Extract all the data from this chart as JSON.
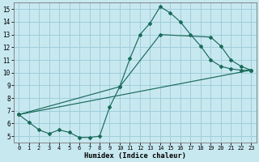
{
  "xlabel": "Humidex (Indice chaleur)",
  "background_color": "#c8e8f0",
  "grid_color": "#9ecfda",
  "line_color": "#1a6b5a",
  "xlim": [
    -0.5,
    23.5
  ],
  "ylim": [
    4.5,
    15.5
  ],
  "xticks": [
    0,
    1,
    2,
    3,
    4,
    5,
    6,
    7,
    8,
    9,
    10,
    11,
    12,
    13,
    14,
    15,
    16,
    17,
    18,
    19,
    20,
    21,
    22,
    23
  ],
  "yticks": [
    5,
    6,
    7,
    8,
    9,
    10,
    11,
    12,
    13,
    14,
    15
  ],
  "line1_x": [
    0,
    1,
    2,
    3,
    4,
    5,
    6,
    7,
    8,
    9,
    10,
    11,
    12,
    13,
    14,
    15,
    16,
    17,
    18,
    19,
    20,
    21,
    22,
    23
  ],
  "line1_y": [
    6.7,
    6.1,
    5.5,
    5.2,
    5.5,
    5.3,
    4.9,
    4.9,
    5.0,
    7.3,
    8.9,
    11.1,
    13.0,
    13.9,
    15.2,
    14.7,
    14.0,
    13.0,
    12.1,
    11.0,
    10.5,
    10.3,
    10.2,
    10.2
  ],
  "line2_x": [
    0,
    23
  ],
  "line2_y": [
    6.7,
    10.2
  ],
  "line3_x": [
    0,
    10,
    14,
    19,
    20,
    21,
    22,
    23
  ],
  "line3_y": [
    6.7,
    8.9,
    13.0,
    12.8,
    12.1,
    11.0,
    10.5,
    10.2
  ]
}
